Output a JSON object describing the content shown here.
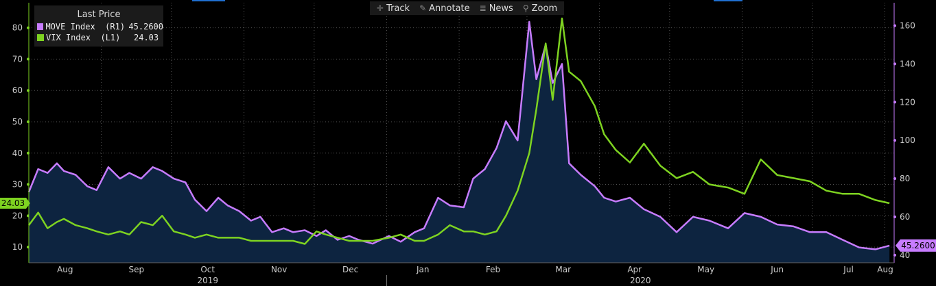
{
  "toolbar": {
    "track": "Track",
    "annotate": "Annotate",
    "news": "News",
    "zoom": "Zoom"
  },
  "legend": {
    "title": "Last Price",
    "items": [
      {
        "name": "MOVE Index  (R1)",
        "value": "45.2600",
        "color": "#c77cff"
      },
      {
        "name": "VIX Index  (L1)",
        "value": "24.03",
        "color": "#7ed321"
      }
    ]
  },
  "colors": {
    "move": "#c77cff",
    "vix": "#7ed321",
    "area": "#0d2440",
    "grid": "#555555",
    "axis_text": "#cccccc"
  },
  "chart_data": {
    "type": "line",
    "x_range": [
      "2019-08-01",
      "2020-08-05"
    ],
    "left_axis": {
      "ticks": [
        10,
        20,
        30,
        40,
        50,
        60,
        70,
        80
      ],
      "range": [
        5,
        88
      ]
    },
    "right_axis": {
      "ticks": [
        40,
        60,
        80,
        100,
        120,
        140,
        160
      ],
      "range": [
        36,
        172
      ]
    },
    "x_month_labels": [
      "Aug",
      "Sep",
      "Oct",
      "Nov",
      "Dec",
      "Jan",
      "Feb",
      "Mar",
      "Apr",
      "May",
      "Jun",
      "Jul",
      "Aug"
    ],
    "x_year_labels": [
      "2019",
      "2020"
    ],
    "last_value_labels": {
      "left": "24.03",
      "right": "45.2600"
    },
    "series": [
      {
        "name": "MOVE Index  (R1)",
        "axis": "right",
        "style": "area",
        "x": [
          "2019-08-01",
          "2019-08-05",
          "2019-08-09",
          "2019-08-13",
          "2019-08-16",
          "2019-08-21",
          "2019-08-26",
          "2019-08-30",
          "2019-09-04",
          "2019-09-09",
          "2019-09-13",
          "2019-09-18",
          "2019-09-23",
          "2019-09-27",
          "2019-10-02",
          "2019-10-07",
          "2019-10-11",
          "2019-10-16",
          "2019-10-21",
          "2019-10-25",
          "2019-10-30",
          "2019-11-04",
          "2019-11-08",
          "2019-11-13",
          "2019-11-18",
          "2019-11-22",
          "2019-11-27",
          "2019-12-02",
          "2019-12-06",
          "2019-12-11",
          "2019-12-16",
          "2019-12-20",
          "2019-12-26",
          "2020-01-02",
          "2020-01-07",
          "2020-01-13",
          "2020-01-17",
          "2020-01-23",
          "2020-01-28",
          "2020-02-03",
          "2020-02-07",
          "2020-02-12",
          "2020-02-17",
          "2020-02-21",
          "2020-02-26",
          "2020-03-02",
          "2020-03-05",
          "2020-03-09",
          "2020-03-12",
          "2020-03-16",
          "2020-03-19",
          "2020-03-24",
          "2020-03-30",
          "2020-04-03",
          "2020-04-08",
          "2020-04-14",
          "2020-04-20",
          "2020-04-27",
          "2020-05-04",
          "2020-05-11",
          "2020-05-18",
          "2020-05-26",
          "2020-06-02",
          "2020-06-09",
          "2020-06-16",
          "2020-06-23",
          "2020-06-30",
          "2020-07-07",
          "2020-07-14",
          "2020-07-21",
          "2020-07-28",
          "2020-08-03"
        ],
        "values": [
          73,
          85,
          83,
          88,
          84,
          82,
          76,
          74,
          86,
          80,
          83,
          80,
          86,
          84,
          80,
          78,
          69,
          63,
          70,
          66,
          63,
          58,
          60,
          52,
          54,
          52,
          53,
          50,
          53,
          48,
          50,
          48,
          46,
          50,
          47,
          52,
          54,
          70,
          66,
          65,
          80,
          85,
          96,
          110,
          100,
          162,
          132,
          150,
          130,
          140,
          88,
          82,
          76,
          70,
          68,
          70,
          64,
          60,
          52,
          60,
          58,
          54,
          62,
          60,
          56,
          55,
          52,
          52,
          48,
          44,
          43,
          45
        ]
      },
      {
        "name": "VIX Index  (L1)",
        "axis": "left",
        "style": "line",
        "x": [
          "2019-08-01",
          "2019-08-05",
          "2019-08-09",
          "2019-08-13",
          "2019-08-16",
          "2019-08-21",
          "2019-08-26",
          "2019-08-30",
          "2019-09-04",
          "2019-09-09",
          "2019-09-13",
          "2019-09-18",
          "2019-09-23",
          "2019-09-27",
          "2019-10-02",
          "2019-10-07",
          "2019-10-11",
          "2019-10-16",
          "2019-10-21",
          "2019-10-25",
          "2019-10-30",
          "2019-11-04",
          "2019-11-08",
          "2019-11-13",
          "2019-11-18",
          "2019-11-22",
          "2019-11-27",
          "2019-12-02",
          "2019-12-06",
          "2019-12-11",
          "2019-12-16",
          "2019-12-20",
          "2019-12-26",
          "2020-01-02",
          "2020-01-07",
          "2020-01-13",
          "2020-01-17",
          "2020-01-23",
          "2020-01-28",
          "2020-02-03",
          "2020-02-07",
          "2020-02-12",
          "2020-02-17",
          "2020-02-21",
          "2020-02-26",
          "2020-03-02",
          "2020-03-05",
          "2020-03-09",
          "2020-03-12",
          "2020-03-16",
          "2020-03-19",
          "2020-03-24",
          "2020-03-30",
          "2020-04-03",
          "2020-04-08",
          "2020-04-14",
          "2020-04-20",
          "2020-04-27",
          "2020-05-04",
          "2020-05-11",
          "2020-05-18",
          "2020-05-26",
          "2020-06-02",
          "2020-06-09",
          "2020-06-16",
          "2020-06-23",
          "2020-06-30",
          "2020-07-07",
          "2020-07-14",
          "2020-07-21",
          "2020-07-28",
          "2020-08-03"
        ],
        "values": [
          17,
          21,
          16,
          18,
          19,
          17,
          16,
          15,
          14,
          15,
          14,
          18,
          17,
          20,
          15,
          14,
          13,
          14,
          13,
          13,
          13,
          12,
          12,
          12,
          12,
          12,
          11,
          15,
          14,
          13,
          12,
          12,
          12,
          13,
          14,
          12,
          12,
          14,
          17,
          15,
          15,
          14,
          15,
          20,
          28,
          40,
          54,
          75,
          57,
          83,
          66,
          63,
          55,
          46,
          41,
          37,
          43,
          36,
          32,
          34,
          30,
          29,
          27,
          38,
          33,
          32,
          31,
          28,
          27,
          27,
          25,
          24
        ]
      }
    ]
  }
}
